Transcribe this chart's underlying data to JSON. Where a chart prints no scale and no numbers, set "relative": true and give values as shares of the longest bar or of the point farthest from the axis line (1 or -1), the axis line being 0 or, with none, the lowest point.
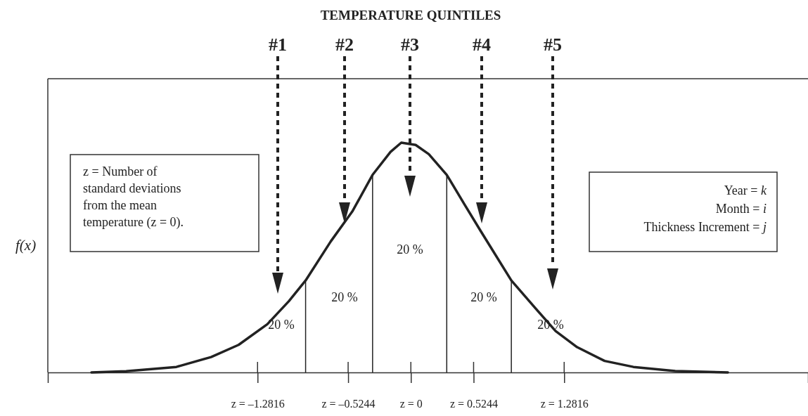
{
  "chart_data": {
    "type": "line",
    "title": "TEMPERATURE QUINTILES",
    "ylabel": "f(x)",
    "relative": true,
    "tick_labels": "x",
    "grid": false,
    "marker": "none",
    "line_style": "solid",
    "xlim": [
      -3.035,
      3.32
    ],
    "xticks": [
      {
        "value": -1.2816,
        "label": "z = –1.2816"
      },
      {
        "value": -0.5244,
        "label": "z = –0.5244"
      },
      {
        "value": 0,
        "label": "z = 0"
      },
      {
        "value": 0.5244,
        "label": "z = 0.5244"
      },
      {
        "value": 1.2816,
        "label": "z = 1.2816"
      }
    ],
    "series": [
      {
        "color": "#222222",
        "x": [
          -2.67,
          -2.38,
          -1.96,
          -1.67,
          -1.44,
          -1.2,
          -1.02,
          -0.88,
          -0.67,
          -0.49,
          -0.32,
          -0.17,
          -0.08,
          0.04,
          0.15,
          0.3,
          0.45,
          0.59,
          0.84,
          1.04,
          1.21,
          1.39,
          1.62,
          1.86,
          2.21,
          2.65
        ],
        "values": [
          0,
          0.005,
          0.024,
          0.067,
          0.12,
          0.21,
          0.31,
          0.4,
          0.57,
          0.7,
          0.86,
          0.96,
          1,
          0.99,
          0.95,
          0.86,
          0.73,
          0.61,
          0.4,
          0.28,
          0.18,
          0.11,
          0.05,
          0.024,
          0.006,
          0
        ]
      }
    ],
    "ref_lines": [
      {
        "axis": "x",
        "value": -0.88,
        "color": "#222222"
      },
      {
        "axis": "x",
        "value": -0.32,
        "color": "#222222"
      },
      {
        "axis": "x",
        "value": 0.3,
        "color": "#222222"
      },
      {
        "axis": "x",
        "value": 0.84,
        "color": "#222222"
      }
    ],
    "annotations": [
      "#1",
      "#2",
      "#3",
      "#4",
      "#5",
      "20 %",
      "20 %",
      "20 %",
      "20 %",
      "20 %",
      "z = Number of\nstandard deviations\nfrom the mean\ntemperature (z = 0).",
      "Year = k\nMonth = i\nThickness Increment = j"
    ]
  }
}
